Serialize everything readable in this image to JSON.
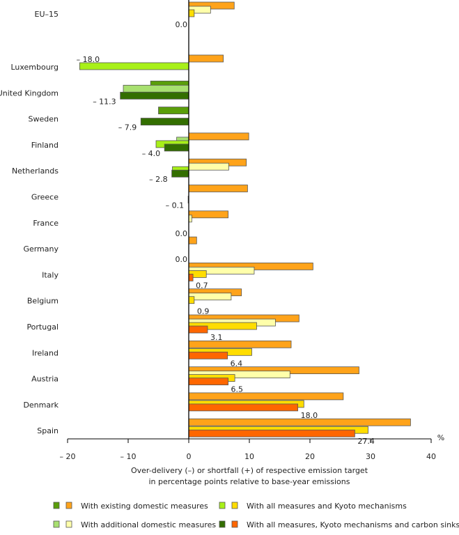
{
  "chart_data": {
    "type": "bar",
    "orientation": "horizontal",
    "xlabel_lines": [
      "Over-delivery (–) or shortfall (+) of respective emission target",
      "in percentage points relative to base-year emissions"
    ],
    "unit": "%",
    "xlim": [
      -20,
      40
    ],
    "xticks": [
      -20,
      -10,
      0,
      10,
      20,
      30,
      40
    ],
    "xtick_labels": [
      "– 20",
      "– 10",
      "0",
      "10",
      "20",
      "30",
      "40"
    ],
    "grid": false,
    "legend_position": "bottom",
    "series": [
      {
        "name": "With existing domestic measures",
        "color_negative": "#5a9e0a",
        "color_positive": "#ffa31a"
      },
      {
        "name": "With additional domestic measures",
        "color_negative": "#a8e070",
        "color_positive": "#ffffaa"
      },
      {
        "name": "With all measures and Kyoto mechanisms",
        "color_negative": "#a8f018",
        "color_positive": "#ffdd00"
      },
      {
        "name": "With all measures, Kyoto mechanisms and carbon sinks",
        "color_negative": "#336e00",
        "color_positive": "#ff6600"
      }
    ],
    "categories": [
      {
        "name": "EU–15",
        "values": [
          7.5,
          3.6,
          0.9,
          0.0
        ],
        "label": "0.0"
      },
      {
        "name": "Luxembourg",
        "values": [
          5.7,
          null,
          -18.0,
          null
        ],
        "label": "– 18.0"
      },
      {
        "name": "United Kingdom",
        "values": [
          -6.3,
          -10.8,
          null,
          -11.3
        ],
        "label": "– 11.3"
      },
      {
        "name": "Sweden",
        "values": [
          -5.0,
          null,
          null,
          -7.9
        ],
        "label": "– 7.9"
      },
      {
        "name": "Finland",
        "values": [
          9.9,
          -2.0,
          -5.4,
          -4.0
        ],
        "label": "– 4.0"
      },
      {
        "name": "Netherlands",
        "values": [
          9.5,
          6.6,
          -2.7,
          -2.8
        ],
        "label": "– 2.8"
      },
      {
        "name": "Greece",
        "values": [
          9.7,
          null,
          null,
          -0.1
        ],
        "label": "– 0.1"
      },
      {
        "name": "France",
        "values": [
          6.5,
          0.5,
          null,
          0.0
        ],
        "label": "0.0"
      },
      {
        "name": "Germany",
        "values": [
          1.3,
          null,
          null,
          0.0
        ],
        "label": "0.0"
      },
      {
        "name": "Italy",
        "values": [
          20.5,
          10.8,
          2.9,
          0.7
        ],
        "label": "0.7"
      },
      {
        "name": "Belgium",
        "values": [
          8.7,
          7.0,
          0.9,
          null
        ],
        "label": "0.9"
      },
      {
        "name": "Portugal",
        "values": [
          18.2,
          14.3,
          11.2,
          3.1
        ],
        "label": "3.1"
      },
      {
        "name": "Ireland",
        "values": [
          16.9,
          null,
          10.4,
          6.4
        ],
        "label": "6.4"
      },
      {
        "name": "Austria",
        "values": [
          28.1,
          16.7,
          7.6,
          6.5
        ],
        "label": "6.5"
      },
      {
        "name": "Denmark",
        "values": [
          25.5,
          null,
          19.0,
          18.0
        ],
        "label": "18.0"
      },
      {
        "name": "Spain",
        "values": [
          36.6,
          null,
          29.6,
          27.4
        ],
        "label": "27.4"
      }
    ]
  }
}
